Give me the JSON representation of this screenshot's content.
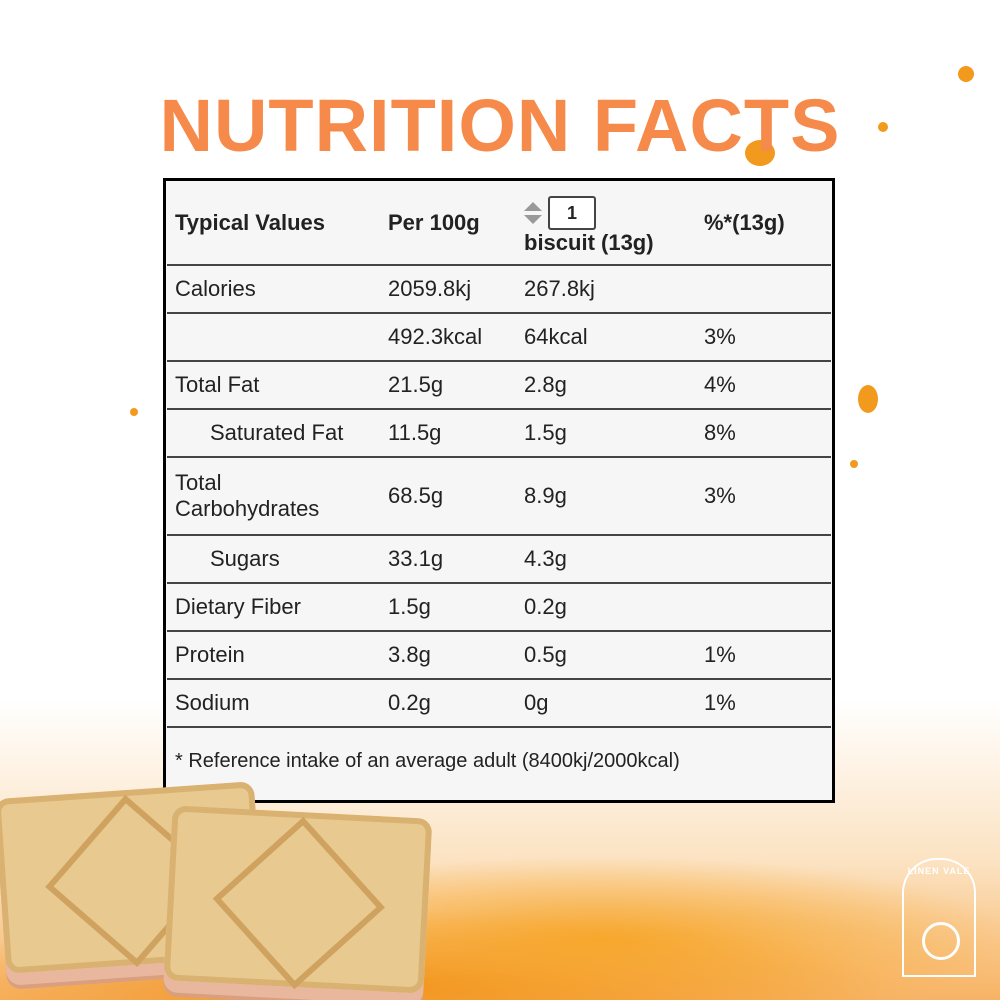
{
  "title": "NUTRITION FACTS",
  "table": {
    "headers": {
      "col1": "Typical Values",
      "col2": "Per 100g",
      "serving_qty": "1",
      "col3": "biscuit (13g)",
      "col4": "%*(13g)"
    },
    "rows": [
      {
        "label": "Calories",
        "per100": "2059.8kj",
        "serving": "267.8kj",
        "pct": ""
      },
      {
        "label": "",
        "per100": "492.3kcal",
        "serving": "64kcal",
        "pct": "3%"
      },
      {
        "label": "Total Fat",
        "per100": "21.5g",
        "serving": "2.8g",
        "pct": "4%"
      },
      {
        "label": "Saturated Fat",
        "per100": "11.5g",
        "serving": "1.5g",
        "pct": "8%"
      },
      {
        "label": "Total Carbohydrates",
        "per100": "68.5g",
        "serving": "8.9g",
        "pct": "3%"
      },
      {
        "label": "Sugars",
        "per100": "33.1g",
        "serving": "4.3g",
        "pct": ""
      },
      {
        "label": "Dietary Fiber",
        "per100": "1.5g",
        "serving": "0.2g",
        "pct": ""
      },
      {
        "label": "Protein",
        "per100": "3.8g",
        "serving": "0.5g",
        "pct": "1%"
      },
      {
        "label": "Sodium",
        "per100": "0.2g",
        "serving": "0g",
        "pct": "1%"
      }
    ],
    "footnote": "* Reference intake of an average adult (8400kj/2000kcal)"
  },
  "logo": {
    "text": "LINEN VALE",
    "icon": "watermill-icon"
  },
  "colors": {
    "title": "#f58a4b",
    "splash": "#f29a1e"
  }
}
